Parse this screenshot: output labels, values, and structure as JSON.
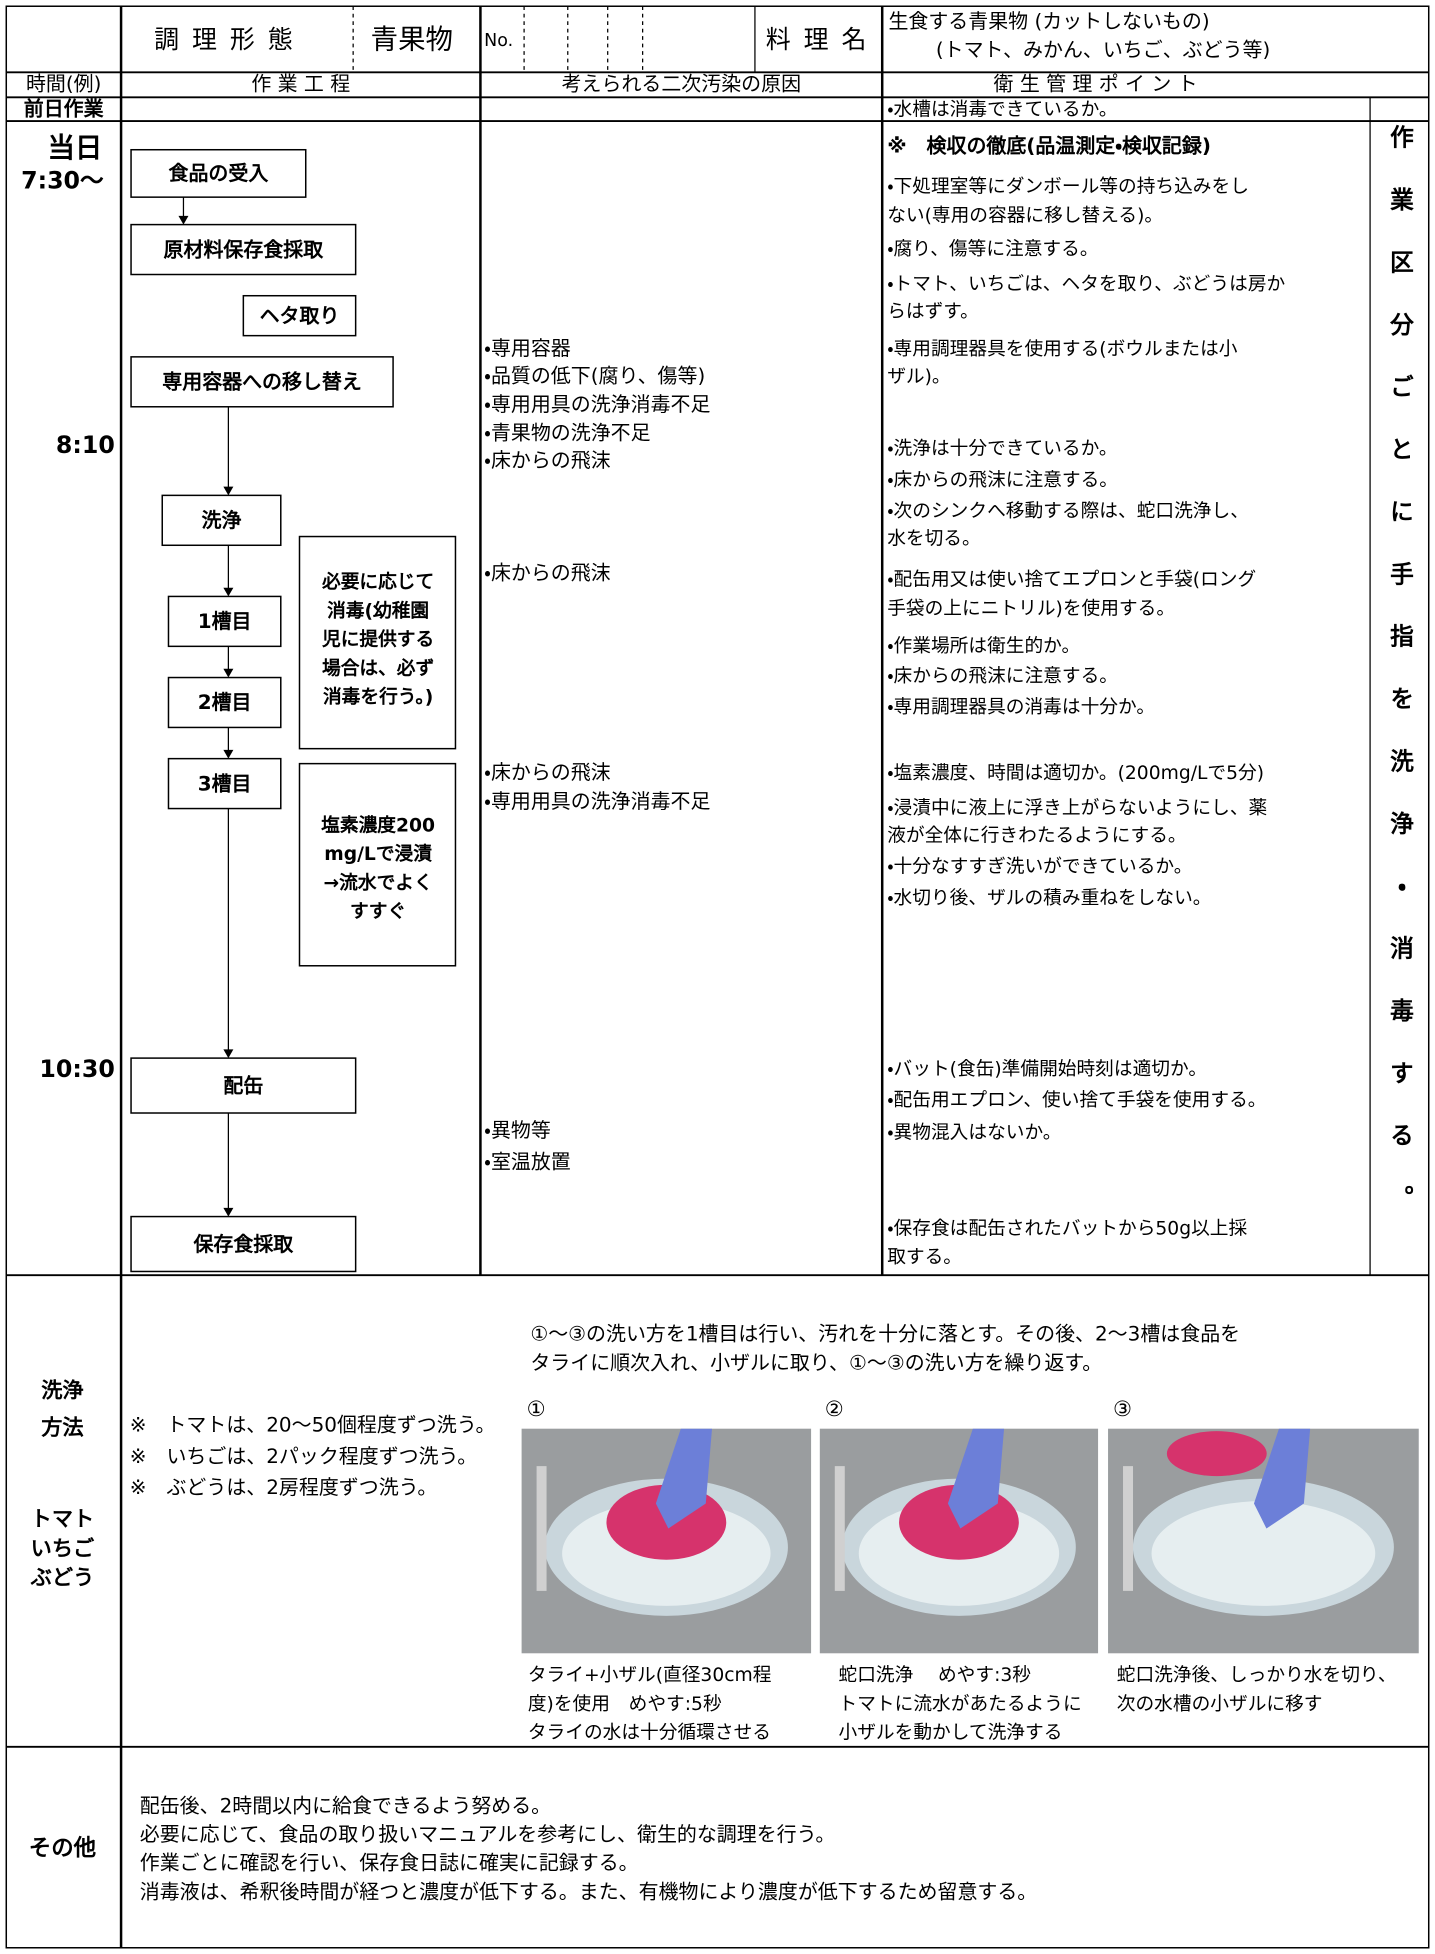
{
  "header": {
    "form_label": "調 理 形 態",
    "form_value": "青果物",
    "no_label": "No.",
    "dish_label": "料 理 名",
    "dish_name": [
      "生食する青果物 (カットしないもの)",
      "(トマト、みかん、いちご、ぶどう等)"
    ],
    "columns": [
      "時間(例)",
      "作 業 工 程",
      "考えられる二次汚染の原因",
      "衛 生 管 理 ポ イ ン ト"
    ]
  },
  "prev_day": {
    "label": "前日作業",
    "point": "・水槽は消毒できているか。"
  },
  "side_note": "作業区分ごとに手指を洗浄・消毒する。",
  "times": [
    "当日",
    "7:30〜",
    "8:10",
    "10:30"
  ],
  "steps": [
    "食品の受入",
    "原材料保存食採取",
    "ヘタ取り",
    "専用容器への移し替え",
    "洗浄",
    "1槽目",
    "2槽目",
    "3槽目",
    "配缶",
    "保存食採取"
  ],
  "notes": [
    [
      "必要に応じて",
      "消毒(幼稚園",
      "児に提供する",
      "場合は、必ず",
      "消毒を行う。)"
    ],
    [
      "塩素濃度200",
      "mg/Lで浸漬",
      "→流水でよく",
      "すすぐ"
    ]
  ],
  "contamination": [
    "・専用容器",
    "・品質の低下(腐り、傷等)",
    "・専用用具の洗浄消毒不足",
    "・青果物の洗浄不足",
    "・床からの飛沫",
    "・床からの飛沫",
    "・床からの飛沫",
    "・専用用具の洗浄消毒不足",
    "・異物等",
    "・室温放置"
  ],
  "points": [
    "※　検収の徹底(品温測定・検収記録)",
    "・下処理室等にダンボール等の持ち込みをし",
    "ない(専用の容器に移し替える)。",
    "・腐り、傷等に注意する。",
    "・トマト、いちごは、ヘタを取り、ぶどうは房か",
    "らはずす。",
    "・専用調理器具を使用する(ボウルまたは小",
    "ザル)。",
    "・洗浄は十分できているか。",
    "・床からの飛沫に注意する。",
    "・次のシンクへ移動する際は、蛇口洗浄し、",
    "水を切る。",
    "・配缶用又は使い捨てエプロンと手袋(ロング",
    "手袋の上にニトリル)を使用する。",
    "・作業場所は衛生的か。",
    "・床からの飛沫に注意する。",
    "・専用調理器具の消毒は十分か。",
    "・塩素濃度、時間は適切か。(200mg/Lで5分)",
    "・浸漬中に液上に浮き上がらないようにし、薬",
    "液が全体に行きわたるようにする。",
    "・十分なすすぎ洗いができているか。",
    "・水切り後、ザルの積み重ねをしない。",
    "・バット(食缶)準備開始時刻は適切か。",
    "・配缶用エプロン、使い捨て手袋を使用する。",
    "・異物混入はないか。",
    "・保存食は配缶されたバットから50g以上採",
    "取する。"
  ],
  "washing": {
    "label": [
      "洗浄",
      "方法",
      "トマト",
      "いちご",
      "ぶどう"
    ],
    "intro": [
      "①〜③の洗い方を1槽目は行い、汚れを十分に落とす。その後、2〜3槽は食品を",
      "タライに順次入れ、小ザルに取り、①〜③の洗い方を繰り返す。"
    ],
    "notes": [
      "※　トマトは、20〜50個程度ずつ洗う。",
      "※　いちごは、2パック程度ずつ洗う。",
      "※　ぶどうは、2房程度ずつ洗う。"
    ],
    "photos": [
      {
        "number": "①",
        "caption": [
          "タライ+小ザル(直径30cm程",
          "度)を使用　めやす:5秒",
          "タライの水は十分循環させる"
        ]
      },
      {
        "number": "②",
        "caption": [
          "蛇口洗浄　 めやす:3秒",
          "トマトに流水があたるように",
          "小ザルを動かして洗浄する"
        ]
      },
      {
        "number": "③",
        "caption": [
          "蛇口洗浄後、しっかり水を切り、",
          "次の水槽の小ザルに移す"
        ]
      }
    ]
  },
  "other": {
    "label": "その他",
    "lines": [
      "配缶後、2時間以内に給食できるよう努める。",
      "必要に応じて、食品の取り扱いマニュアルを参考にし、衛生的な調理を行う。",
      "作業ごとに確認を行い、保存食日誌に確実に記録する。",
      "消毒液は、希釈後時間が経つと濃度が低下する。また、有機物により濃度が低下するため留意する。"
    ]
  }
}
